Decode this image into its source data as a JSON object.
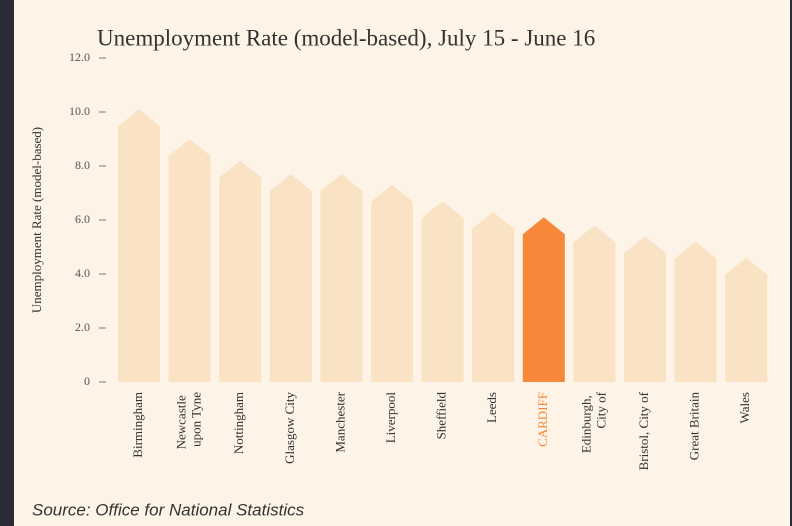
{
  "chart_data": {
    "type": "bar",
    "title": "Unemployment Rate (model-based), July 15 - June 16",
    "y_label": "Unemployment Rate (model-based)",
    "source": "Source: Office for National Statistics",
    "categories": [
      "Birmingham",
      "Newcastle upon Tyne",
      "Nottingham",
      "Glasgow City",
      "Manchester",
      "Liverpool",
      "Sheffield",
      "Leeds",
      "CARDIFF",
      "Edinburgh, City of",
      "Bristol, City of",
      "Great Britain",
      "Wales"
    ],
    "values": [
      10.1,
      9.0,
      8.2,
      7.7,
      7.7,
      7.3,
      6.7,
      6.3,
      6.1,
      5.8,
      5.4,
      5.2,
      4.6
    ],
    "color": "#fae3c4",
    "highlight": {
      "category": "CARDIFF",
      "color": "#f7883a"
    },
    "ylim": [
      0,
      12
    ],
    "yticks": [
      0,
      {
        "value": 2,
        "label": "2.0"
      },
      {
        "value": 4,
        "label": "4.0"
      },
      {
        "value": 6,
        "label": "6.0"
      },
      {
        "value": 8,
        "label": "8.0"
      },
      {
        "value": 10,
        "label": "10.0"
      },
      {
        "value": 12,
        "label": "12.0"
      }
    ],
    "grid": false
  }
}
